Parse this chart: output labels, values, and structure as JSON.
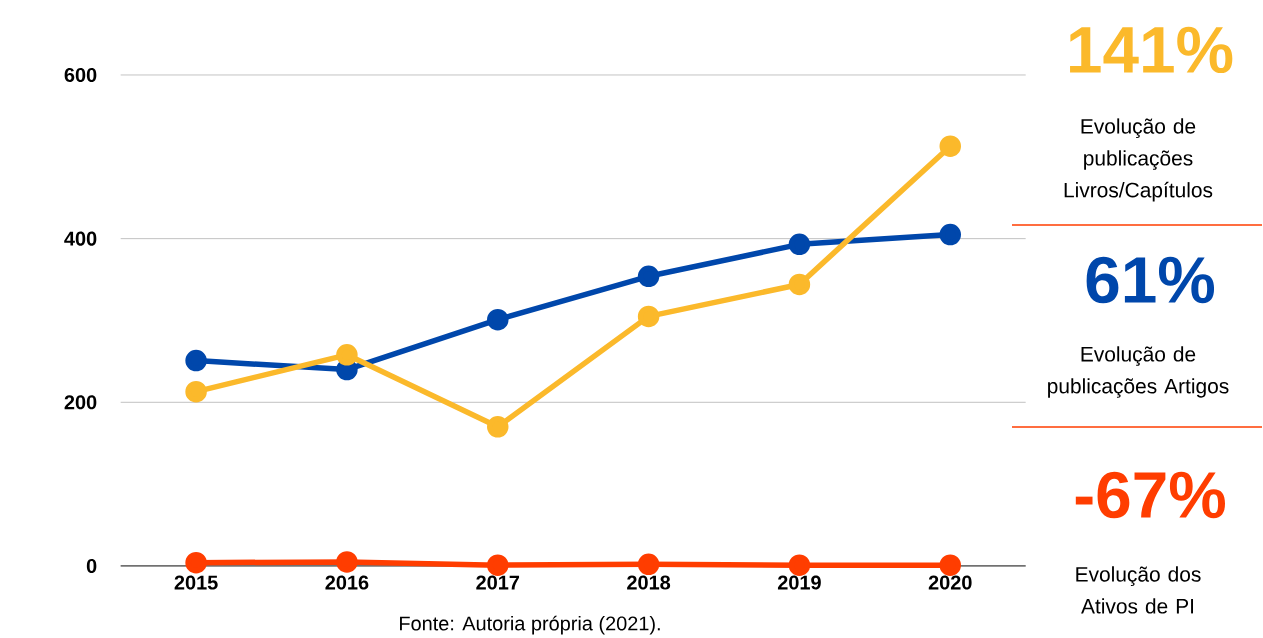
{
  "chart_data": [
    {
      "type": "line",
      "categories": [
        "2015",
        "2016",
        "2017",
        "2018",
        "2019",
        "2020"
      ],
      "series": [
        {
          "color": "#0047ab",
          "values": [
            251,
            240,
            301,
            354,
            393,
            405
          ]
        },
        {
          "color": "#fbb92b",
          "values": [
            213,
            258,
            170,
            305,
            344,
            513
          ]
        },
        {
          "color": "#ff3d00",
          "values": [
            4,
            5,
            1,
            2,
            1,
            1
          ]
        }
      ],
      "ylim": [
        0,
        600
      ],
      "yticks": [
        0,
        200,
        400,
        600
      ],
      "grid": "y",
      "marker": "circle",
      "line_style": "solid",
      "annotations": [
        "Fonte: Autoria própria (2021)."
      ]
    },
    {
      "type": "other",
      "colors": [
        "#fbb92b",
        "#0047ab",
        "#ff3d00"
      ],
      "annotations": [
        "141%",
        "Evolução de publicações Livros/Capítulos",
        "61%",
        "Evolução de publicações Artigos",
        "-67%",
        "Evolução dos Ativos de PI"
      ]
    }
  ]
}
